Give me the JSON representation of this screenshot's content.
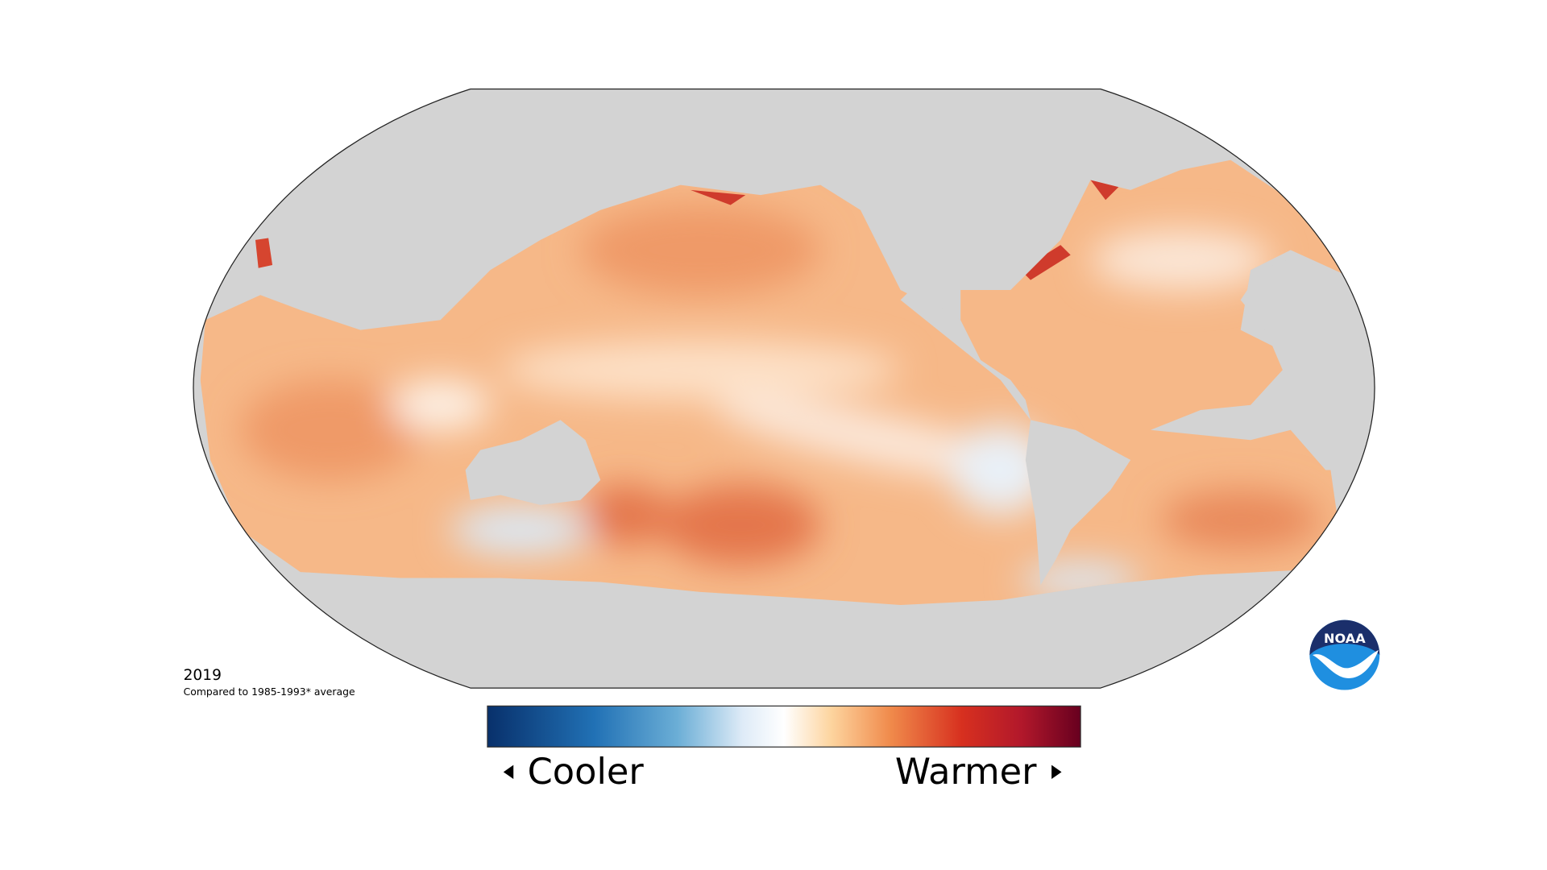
{
  "map": {
    "year": "2019",
    "baseline_note": "Compared to 1985-1993* average",
    "legend": {
      "low_label": "Cooler",
      "high_label": "Warmer"
    }
  },
  "logo": {
    "text": "NOAA"
  }
}
